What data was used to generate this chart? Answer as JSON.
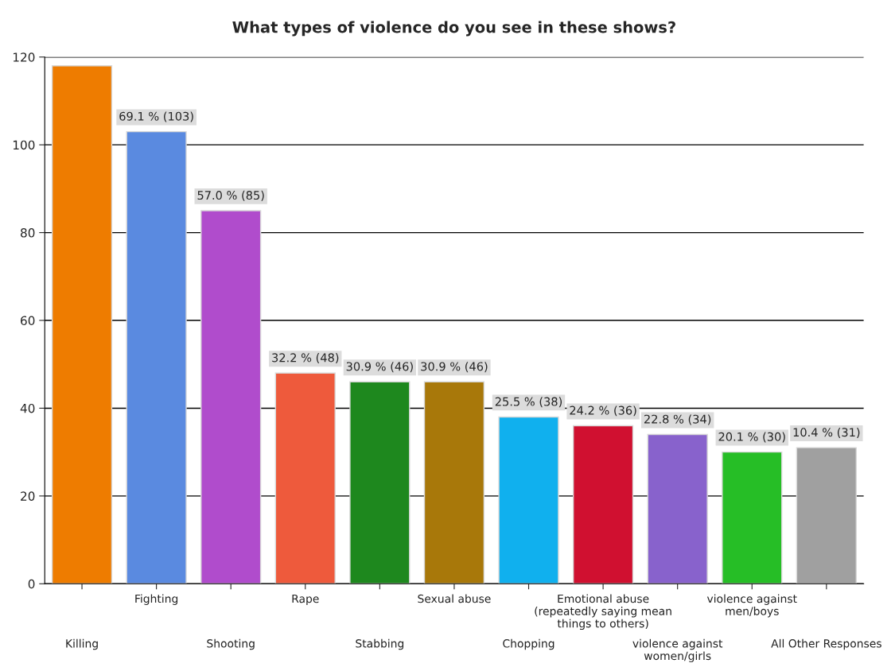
{
  "chart_data": {
    "type": "bar",
    "title": "What types of violence do you see in these shows?",
    "categories": [
      "Killing",
      "Fighting",
      "Shooting",
      "Rape",
      "Stabbing",
      "Sexual abuse",
      "Chopping",
      "Emotional abuse\n(repeatedly saying mean\nthings to others)",
      "violence against\nwomen/girls",
      "violence against\nmen/boys",
      "All Other Responses"
    ],
    "values": [
      118,
      103,
      85,
      48,
      46,
      46,
      38,
      36,
      34,
      30,
      31
    ],
    "colors": [
      "#ee7c00",
      "#5a8ae0",
      "#b04ccc",
      "#ee5a3c",
      "#1e881e",
      "#a8780a",
      "#10b0ee",
      "#d01030",
      "#8862cc",
      "#26be26",
      "#a0a0a0"
    ],
    "value_labels": [
      null,
      "69.1 % (103)",
      "57.0 % (85)",
      "32.2 % (48)",
      "30.9 % (46)",
      "30.9 % (46)",
      "25.5 % (38)",
      "24.2 % (36)",
      "22.8 % (34)",
      "20.1 % (30)",
      "10.4 % (31)"
    ],
    "ylim": [
      0,
      120
    ],
    "yticks": [
      0,
      20,
      40,
      60,
      80,
      100,
      120
    ],
    "grid": "y"
  }
}
